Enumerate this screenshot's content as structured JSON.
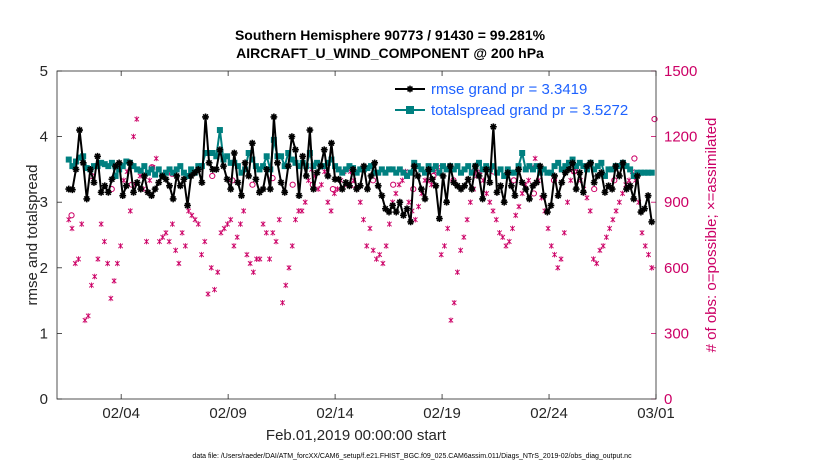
{
  "chart_data": {
    "type": "line",
    "title": [
      "Southern Hemisphere 90773 / 91430 = 99.281%",
      "AIRCRAFT_U_WIND_COMPONENT @ 200 hPa"
    ],
    "xlabel": "Feb.01,2019 00:00:00 start",
    "ylabel_left": "rmse and totalspread",
    "ylabel_right": "# of obs: o=possible; ×=assimilated",
    "x_range": [
      0.5,
      28.5
    ],
    "ylim_left": [
      0,
      5
    ],
    "ylim_right": [
      0,
      1500
    ],
    "x_ticks": [
      {
        "x": 3.5,
        "label": "02/04"
      },
      {
        "x": 8.5,
        "label": "02/09"
      },
      {
        "x": 13.5,
        "label": "02/14"
      },
      {
        "x": 18.5,
        "label": "02/19"
      },
      {
        "x": 23.5,
        "label": "02/24"
      },
      {
        "x": 28.5,
        "label": "03/01"
      }
    ],
    "y_ticks_left": [
      0,
      1,
      2,
      3,
      4,
      5
    ],
    "y_ticks_right": [
      0,
      300,
      600,
      900,
      1200,
      1500
    ],
    "colors": {
      "rmse": "#000000",
      "spread": "#008080",
      "obs": "#cc0066",
      "legend_text": "#1e62ff"
    },
    "series": [
      {
        "name": "rmse",
        "legend": "rmse grand pr = 3.3419",
        "axis": "left",
        "values": [
          3.2,
          3.19,
          3.5,
          4.1,
          3.6,
          3.05,
          3.5,
          3.3,
          3.7,
          3.15,
          3.25,
          3.15,
          3.35,
          3.55,
          3.6,
          3.1,
          3.25,
          3.6,
          3.15,
          3.3,
          3.2,
          3.4,
          3.15,
          3.1,
          3.2,
          3.3,
          3.4,
          3.35,
          3.25,
          3.05,
          3.4,
          3.25,
          3.35,
          2.95,
          3.4,
          3.45,
          3.5,
          3.3,
          4.3,
          3.6,
          3.5,
          3.5,
          3.8,
          3.55,
          3.35,
          3.2,
          3.75,
          3.3,
          3.1,
          3.6,
          3.4,
          3.9,
          3.35,
          3.15,
          3.2,
          3.5,
          3.2,
          4.3,
          3.6,
          3.3,
          3.15,
          3.55,
          4.0,
          3.8,
          3.1,
          3.7,
          3.4,
          4.1,
          3.2,
          3.45,
          3.55,
          3.8,
          3.4,
          3.9,
          3.35,
          3.35,
          3.2,
          3.3,
          3.25,
          3.5,
          3.2,
          3.25,
          3.55,
          3.2,
          3.4,
          3.6,
          3.25,
          3.1,
          2.9,
          2.85,
          2.95,
          2.85,
          3.0,
          2.8,
          2.9,
          2.7,
          3.55,
          3.4,
          3.2,
          3.05,
          3.5,
          3.35,
          3.25,
          2.75,
          3.4,
          3.0,
          3.55,
          3.3,
          3.25,
          3.2,
          3.25,
          3.35,
          3.2,
          3.55,
          3.4,
          3.05,
          3.5,
          3.3,
          4.15,
          3.15,
          3.25,
          3.0,
          3.45,
          3.25,
          3.1,
          3.5,
          3.3,
          3.2,
          3.05,
          3.25,
          3.3,
          3.55,
          3.1,
          2.85,
          2.95,
          3.4,
          3.1,
          3.3,
          3.45,
          3.5,
          3.6,
          3.2,
          3.45,
          3.15,
          3.55,
          3.6,
          3.3,
          3.4,
          3.45,
          3.15,
          3.25,
          3.2,
          3.55,
          3.4,
          3.6,
          3.2,
          3.25,
          3.05,
          3.4,
          2.85,
          2.9,
          3.1,
          2.7
        ]
      },
      {
        "name": "totalspread",
        "legend": "totalspread grand pr = 3.5272",
        "axis": "left",
        "values": [
          3.65,
          3.55,
          3.62,
          3.68,
          3.7,
          3.52,
          3.5,
          3.55,
          3.55,
          3.6,
          3.58,
          3.55,
          3.6,
          3.4,
          3.5,
          3.55,
          3.62,
          3.6,
          3.55,
          3.5,
          3.48,
          3.55,
          3.45,
          3.5,
          3.42,
          3.5,
          3.4,
          3.45,
          3.5,
          3.45,
          3.5,
          3.55,
          3.45,
          3.4,
          3.5,
          3.45,
          3.55,
          3.55,
          3.75,
          3.75,
          3.75,
          3.7,
          4.1,
          3.65,
          3.7,
          3.6,
          3.6,
          3.55,
          3.45,
          3.5,
          3.75,
          3.65,
          3.55,
          3.5,
          3.55,
          3.7,
          3.5,
          3.95,
          3.7,
          3.7,
          3.55,
          3.75,
          3.65,
          3.6,
          3.55,
          3.6,
          3.55,
          3.75,
          3.55,
          3.6,
          3.55,
          3.55,
          3.6,
          3.65,
          3.55,
          3.5,
          3.45,
          3.5,
          3.55,
          3.52,
          3.45,
          3.5,
          3.5,
          3.52,
          3.55,
          3.45,
          3.45,
          3.5,
          3.45,
          3.5,
          3.5,
          3.45,
          3.5,
          3.45,
          3.4,
          3.45,
          3.6,
          3.55,
          3.5,
          3.45,
          3.55,
          3.5,
          3.55,
          3.45,
          3.55,
          3.5,
          3.55,
          3.5,
          3.55,
          3.45,
          3.5,
          3.55,
          3.45,
          3.55,
          3.6,
          3.5,
          3.55,
          3.5,
          3.55,
          3.45,
          3.5,
          3.4,
          3.5,
          3.45,
          3.45,
          3.55,
          3.75,
          3.5,
          3.55,
          3.5,
          3.55,
          3.45,
          3.5,
          3.45,
          3.45,
          3.55,
          3.6,
          3.5,
          3.55,
          3.6,
          3.65,
          3.55,
          3.6,
          3.55,
          3.5,
          3.6,
          3.5,
          3.55,
          3.6,
          3.4,
          3.5,
          3.5,
          3.55,
          3.55,
          3.6,
          3.55,
          3.5,
          3.4,
          3.45,
          3.45,
          3.45,
          3.45,
          3.45
        ]
      },
      {
        "name": "obs_possible",
        "legend": "o=possible",
        "axis": "right",
        "values": [
          840,
          1020,
          960,
          980,
          1060,
          1030,
          1030,
          1020,
          1000,
          980,
          1010,
          980,
          980,
          960,
          980,
          1000,
          980,
          960,
          1020,
          1000,
          1040,
          1040,
          1000,
          940,
          1000,
          1040,
          960,
          1000,
          1100,
          1280
        ]
      },
      {
        "name": "obs_assimilated",
        "legend": "×=assimilated",
        "axis": "right",
        "values": [
          820,
          780,
          620,
          640,
          800,
          360,
          380,
          520,
          560,
          640,
          800,
          720,
          620,
          460,
          540,
          620,
          700,
          1000,
          1040,
          860,
          1200,
          1280,
          1020,
          960,
          720,
          1000,
          1060,
          1100,
          720,
          740,
          760,
          720,
          800,
          680,
          620,
          760,
          700,
          860,
          840,
          820,
          800,
          660,
          720,
          480,
          600,
          500,
          580,
          760,
          780,
          800,
          820,
          700,
          740,
          800,
          860,
          660,
          620,
          580,
          640,
          640,
          800,
          760,
          640,
          760,
          720,
          820,
          440,
          520,
          600,
          700,
          820,
          860,
          860,
          900,
          1000,
          1050,
          1020,
          960,
          980,
          1040,
          900,
          860,
          940,
          960,
          1000,
          1040,
          980,
          1040,
          1000,
          960,
          900,
          820,
          700,
          780,
          680,
          640,
          660,
          620,
          700,
          800,
          900,
          940,
          980,
          1000,
          1040,
          900,
          860,
          820,
          880,
          940,
          1000,
          1000,
          980,
          1040,
          1060,
          660,
          700,
          780,
          360,
          440,
          580,
          680,
          740,
          820,
          900,
          960,
          1020,
          1040,
          1000,
          940,
          900,
          860,
          820,
          760,
          740,
          700,
          720,
          780,
          840,
          880,
          940,
          980,
          1000,
          1060,
          1100,
          1000,
          920,
          860,
          780,
          700,
          660,
          600,
          640,
          760,
          900,
          1000,
          1040,
          1060,
          1000,
          960,
          920,
          860,
          640,
          620,
          680,
          700,
          740,
          780,
          820,
          860,
          900,
          940,
          980,
          1000,
          1040,
          1000,
          900,
          760,
          700,
          660,
          600
        ]
      }
    ]
  },
  "footer": "data file: /Users/raeder/DAI/ATM_forcXX/CAM6_setup/f.e21.FHIST_BGC.f09_025.CAM6assim.011/Diags_NTrS_2019-02/obs_diag_output.nc"
}
